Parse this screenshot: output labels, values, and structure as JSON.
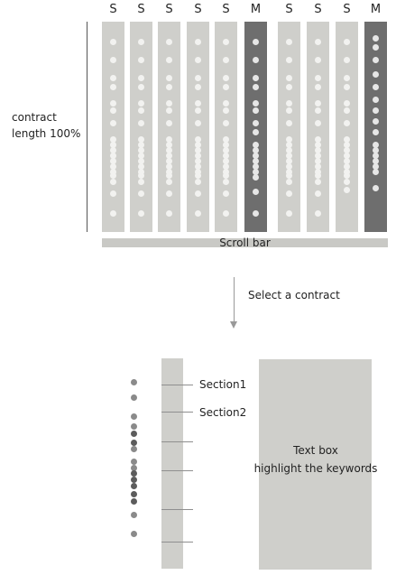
{
  "overview": {
    "columns": [
      {
        "label": "S",
        "type": "S"
      },
      {
        "label": "S",
        "type": "S"
      },
      {
        "label": "S",
        "type": "S"
      },
      {
        "label": "S",
        "type": "S"
      },
      {
        "label": "S",
        "type": "S"
      },
      {
        "label": "M",
        "type": "M"
      },
      {
        "label": "S",
        "type": "S"
      },
      {
        "label": "S",
        "type": "S"
      },
      {
        "label": "S",
        "type": "S"
      },
      {
        "label": "M",
        "type": "M"
      }
    ],
    "length_label_line1": "contract",
    "length_label_line2": "length 100%",
    "scrollbar_label": "Scroll bar"
  },
  "arrow": {
    "label": "Select a contract"
  },
  "detail": {
    "sections": [
      {
        "label": "Section1"
      },
      {
        "label": "Section2"
      }
    ],
    "textbox_line1": "Text box",
    "textbox_line2": "highlight the keywords"
  },
  "colors": {
    "column_fill": "#cfcfcb",
    "master_column_fill": "#6e6e6e",
    "dot_light": "#f2f2f0",
    "dot_gray": "#8a8a8a"
  }
}
